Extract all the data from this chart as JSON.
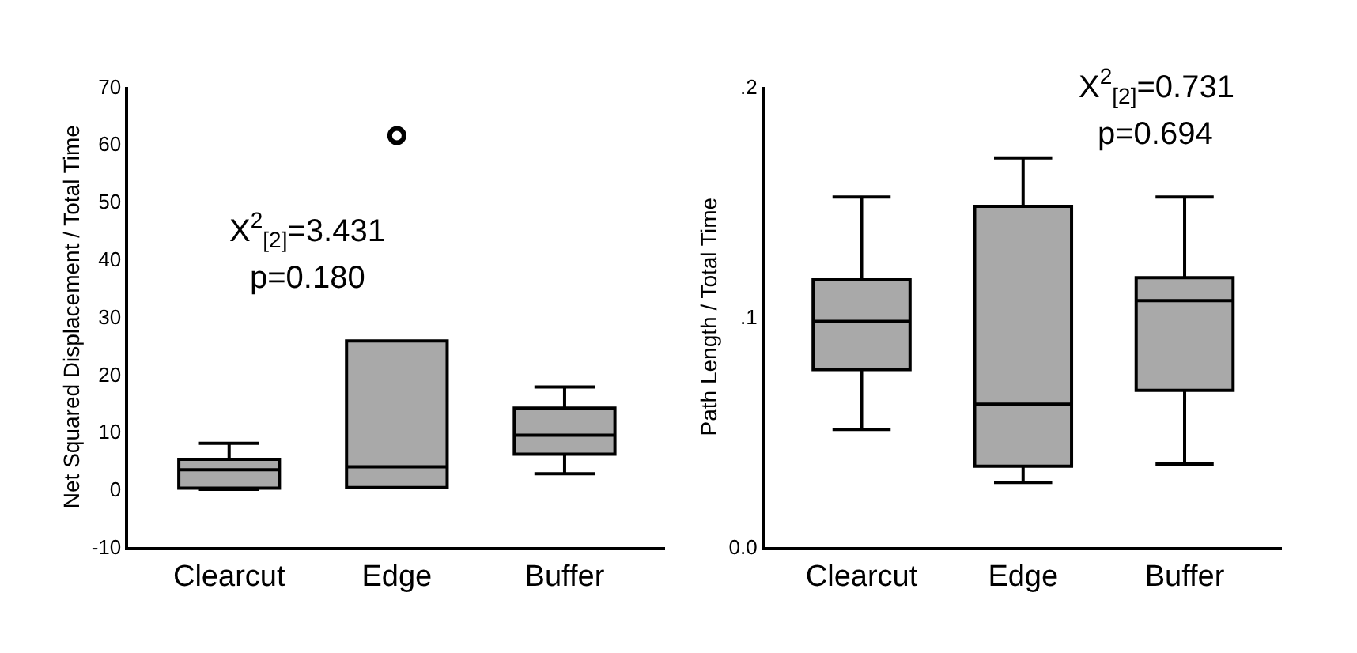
{
  "chart_data": [
    {
      "type": "box",
      "ylabel": "Net Squared Displacement / Total Time",
      "categories": [
        "Clearcut",
        "Edge",
        "Buffer"
      ],
      "color": "#a9a9a9",
      "ylim": [
        -10,
        70
      ],
      "yticks": [
        -10,
        0,
        10,
        20,
        30,
        40,
        50,
        60,
        70
      ],
      "grid": false,
      "legend": false,
      "boxes": [
        {
          "low": 0.0,
          "q1": 0.2,
          "median": 3.4,
          "q3": 5.2,
          "high": 8.0
        },
        {
          "low": 0.3,
          "q1": 0.3,
          "median": 3.9,
          "q3": 25.8,
          "high": 25.8,
          "outliers": [
            61.5
          ]
        },
        {
          "low": 2.7,
          "q1": 6.1,
          "median": 9.4,
          "q3": 14.1,
          "high": 17.8
        }
      ],
      "annotations": [
        "X$^{2}$$_{[2]}$=3.431",
        "p=0.180"
      ]
    },
    {
      "type": "box",
      "ylabel": "Path Length / Total Time",
      "categories": [
        "Clearcut",
        "Edge",
        "Buffer"
      ],
      "color": "#a9a9a9",
      "ylim": [
        0,
        0.2
      ],
      "yticks": [
        {
          "value": 0,
          "label": "0.0"
        },
        {
          "value": 0.1,
          "label": ".1"
        },
        {
          "value": 0.2,
          "label": ".2"
        }
      ],
      "grid": false,
      "legend": false,
      "boxes": [
        {
          "low": 0.051,
          "q1": 0.077,
          "median": 0.098,
          "q3": 0.116,
          "high": 0.152
        },
        {
          "low": 0.028,
          "q1": 0.035,
          "median": 0.062,
          "q3": 0.148,
          "high": 0.169
        },
        {
          "low": 0.036,
          "q1": 0.068,
          "median": 0.107,
          "q3": 0.117,
          "high": 0.152
        }
      ],
      "annotations": [
        "X$^{2}$$_{[2]}$=0.731",
        "p=0.694"
      ]
    }
  ]
}
